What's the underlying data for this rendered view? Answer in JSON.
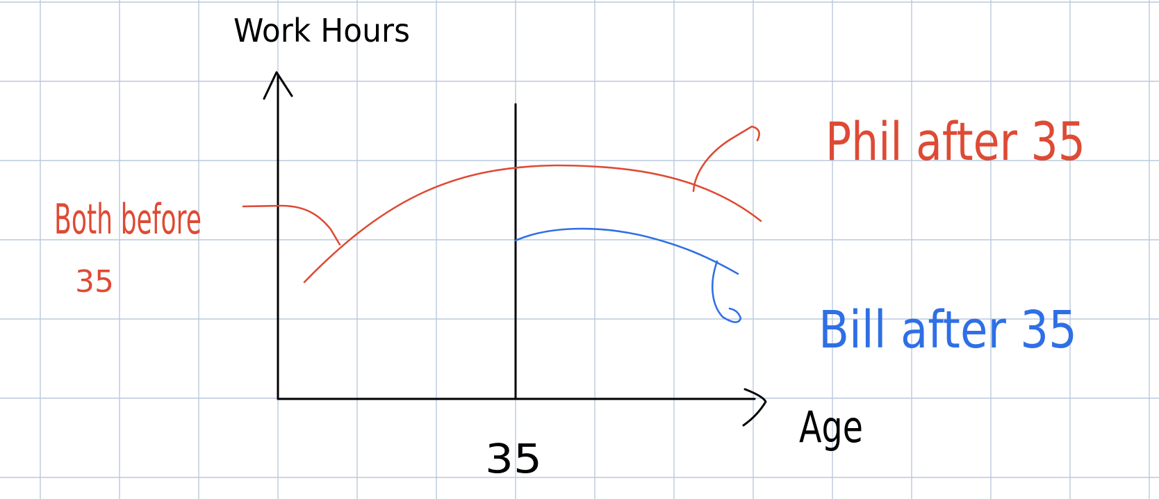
{
  "diagram": {
    "y_axis_label": "Work Hours",
    "x_axis_label": "Age",
    "x_marker_label": "35",
    "annotations": {
      "both_before_line1": "Both before",
      "both_before_line2": "35",
      "phil_after": "Phil after 35",
      "bill_after": "Bill after 35"
    }
  },
  "colors": {
    "background": "#ffffff",
    "grid": "#b9c9de",
    "axes": "#000000",
    "phil_curve": "#de4a34",
    "bill_curve": "#2f6fe6"
  }
}
